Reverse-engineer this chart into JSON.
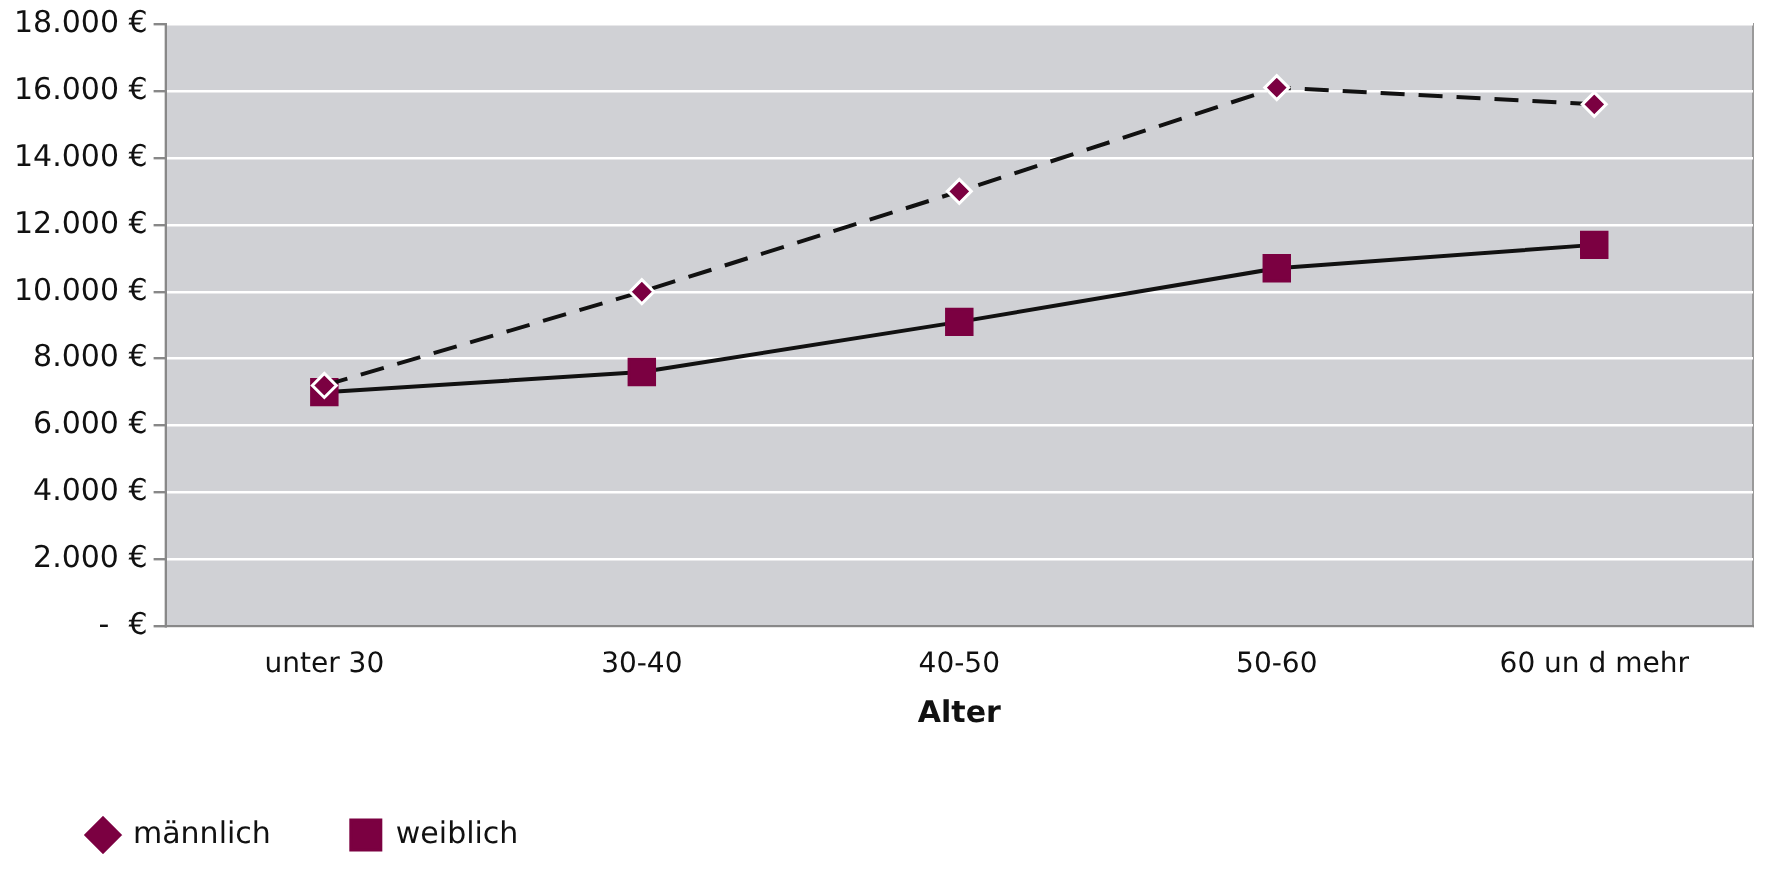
{
  "chart_data": {
    "type": "line",
    "xlabel": "Alter",
    "categories": [
      "unter 30",
      "30-40",
      "40-50",
      "50-60",
      "60 un d mehr"
    ],
    "series": [
      {
        "name": "männlich",
        "color": "#7b0041",
        "marker": "diamond",
        "line_style": "dashed",
        "values": [
          7200,
          10000,
          13000,
          16100,
          15600
        ]
      },
      {
        "name": "weiblich",
        "color": "#7b0041",
        "marker": "square",
        "line_style": "solid",
        "values": [
          7000,
          7600,
          9100,
          10700,
          11400
        ]
      }
    ],
    "ylim": [
      0,
      18000
    ],
    "yticks": [
      {
        "value": 0,
        "label": "-  €"
      },
      {
        "value": 2000,
        "label": "2.000 €"
      },
      {
        "value": 4000,
        "label": "4.000 €"
      },
      {
        "value": 6000,
        "label": "6.000 €"
      },
      {
        "value": 8000,
        "label": "8.000 €"
      },
      {
        "value": 10000,
        "label": "10.000 €"
      },
      {
        "value": 12000,
        "label": "12.000 €"
      },
      {
        "value": 14000,
        "label": "14.000 €"
      },
      {
        "value": 16000,
        "label": "16.000 €"
      },
      {
        "value": 18000,
        "label": "18.000 €"
      }
    ],
    "grid": "y",
    "legend": "bottom left"
  }
}
